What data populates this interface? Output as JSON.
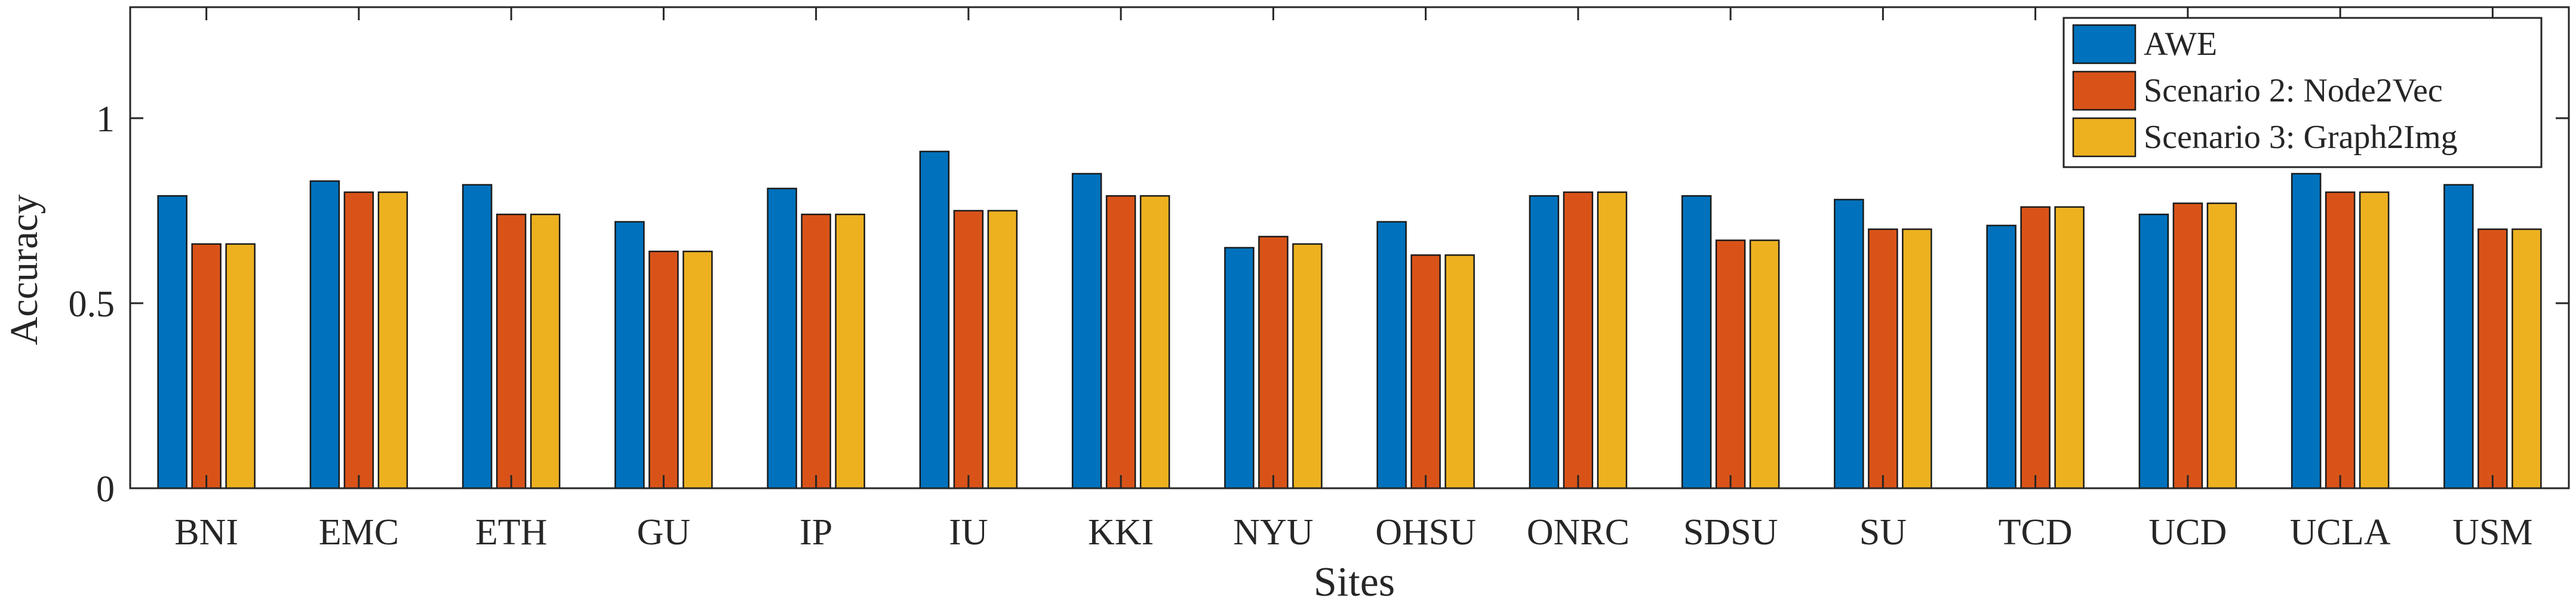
{
  "chart_data": {
    "type": "bar",
    "xlabel": "Sites",
    "ylabel": "Accuracy",
    "ylim": [
      0,
      1.3
    ],
    "yticks": [
      0,
      0.5,
      1
    ],
    "ytick_labels": [
      "0",
      "0.5",
      "1"
    ],
    "grid": false,
    "legend_position": "top-right",
    "categories": [
      "BNI",
      "EMC",
      "ETH",
      "GU",
      "IP",
      "IU",
      "KKI",
      "NYU",
      "OHSU",
      "ONRC",
      "SDSU",
      "SU",
      "TCD",
      "UCD",
      "UCLA",
      "USM"
    ],
    "series": [
      {
        "name": "AWE",
        "color": "#0072BD",
        "values": [
          0.79,
          0.83,
          0.82,
          0.72,
          0.81,
          0.91,
          0.85,
          0.65,
          0.72,
          0.79,
          0.79,
          0.78,
          0.71,
          0.74,
          0.85,
          0.82
        ]
      },
      {
        "name": "Scenario 2: Node2Vec",
        "color": "#D95319",
        "values": [
          0.66,
          0.8,
          0.74,
          0.64,
          0.74,
          0.75,
          0.79,
          0.68,
          0.63,
          0.8,
          0.67,
          0.7,
          0.76,
          0.77,
          0.8,
          0.7
        ]
      },
      {
        "name": "Scenario 3: Graph2Img",
        "color": "#EDB120",
        "values": [
          0.66,
          0.8,
          0.74,
          0.64,
          0.74,
          0.75,
          0.79,
          0.66,
          0.63,
          0.8,
          0.67,
          0.7,
          0.76,
          0.77,
          0.8,
          0.7
        ]
      }
    ]
  }
}
